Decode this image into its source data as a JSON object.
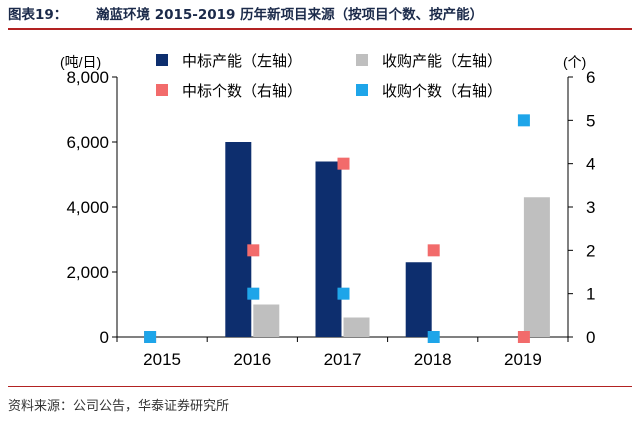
{
  "figure": {
    "number": "图表19：",
    "title": "瀚蓝环境 2015-2019 历年新项目来源（按项目个数、按产能）",
    "source": "资料来源：公司公告，华泰证券研究所"
  },
  "chart_data": {
    "type": "bar",
    "categories": [
      "2015",
      "2016",
      "2017",
      "2018",
      "2019"
    ],
    "left_axis": {
      "unit": "(吨/日)",
      "ylim": [
        0,
        8000
      ],
      "ticks": [
        "0",
        "2,000",
        "4,000",
        "6,000",
        "8,000"
      ],
      "tick_values": [
        0,
        2000,
        4000,
        6000,
        8000
      ]
    },
    "right_axis": {
      "unit": "(个)",
      "ylim": [
        0,
        6
      ],
      "ticks": [
        "0",
        "1",
        "2",
        "3",
        "4",
        "5",
        "6"
      ],
      "tick_values": [
        0,
        1,
        2,
        3,
        4,
        5,
        6
      ]
    },
    "series": [
      {
        "name": "中标产能（左轴）",
        "kind": "bar",
        "axis": "left",
        "color": "#0d2e6e",
        "values": [
          0,
          6000,
          5400,
          2300,
          0
        ]
      },
      {
        "name": "收购产能（左轴）",
        "kind": "bar",
        "axis": "left",
        "color": "#bfbfbf",
        "values": [
          0,
          1000,
          600,
          0,
          4300
        ]
      },
      {
        "name": "中标个数（右轴）",
        "kind": "marker",
        "axis": "right",
        "color": "#f26b6b",
        "values": [
          0,
          2,
          4,
          2,
          0
        ]
      },
      {
        "name": "收购个数（右轴）",
        "kind": "marker",
        "axis": "right",
        "color": "#1ea5e9",
        "values": [
          0,
          1,
          1,
          0,
          5
        ]
      }
    ],
    "legend_position": "top",
    "grid": false
  }
}
